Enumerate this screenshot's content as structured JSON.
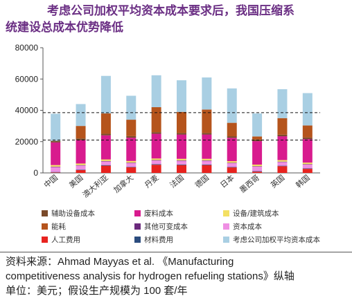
{
  "title_line1": "考虑公司加权平均资本成本要求后，我国压缩系",
  "title_line2": "统建设总成本优势降低",
  "source_line1": "资料来源：Ahmad Mayyas et al. 《Manufacturing",
  "source_line2": "competitiveness analysis for hydrogen refueling stations》纵轴",
  "source_line3": "单位：美元；假设生产规模为 100 套/年",
  "chart_data": {
    "type": "bar",
    "stacked": true,
    "categories": [
      "中国",
      "美国",
      "澳大利亚",
      "加拿大",
      "丹麦",
      "法国",
      "德国",
      "日本",
      "墨西哥",
      "英国",
      "韩国"
    ],
    "ylim": [
      0,
      80000
    ],
    "yticks": [
      0,
      20000,
      40000,
      60000,
      80000
    ],
    "ytick_labels": [
      "0",
      "20000",
      "40000",
      "60000",
      "80000"
    ],
    "reference_lines": [
      38500,
      21000
    ],
    "series": [
      {
        "name": "人工费用",
        "color": "#e8231f",
        "values": [
          300,
          1800,
          4600,
          3600,
          5200,
          5000,
          5000,
          3500,
          800,
          4300,
          2600
        ]
      },
      {
        "name": "材料费用",
        "color": "#2b4c7e",
        "values": [
          300,
          300,
          400,
          300,
          400,
          400,
          400,
          300,
          300,
          300,
          300
        ]
      },
      {
        "name": "资本成本",
        "color": "#ef8fe3",
        "values": [
          3100,
          2600,
          2300,
          2400,
          2300,
          2300,
          2300,
          2400,
          2900,
          2300,
          2400
        ]
      },
      {
        "name": "其他可变成本",
        "color": "#6b2a7d",
        "values": [
          300,
          300,
          300,
          300,
          300,
          300,
          300,
          300,
          300,
          300,
          300
        ]
      },
      {
        "name": "设备/建筑成本",
        "color": "#f3e063",
        "values": [
          1000,
          1000,
          1000,
          1000,
          1000,
          1000,
          1000,
          1000,
          1000,
          1000,
          1000
        ]
      },
      {
        "name": "废料成本",
        "color": "#d81b8e",
        "values": [
          14500,
          15000,
          15400,
          14900,
          15800,
          15500,
          15500,
          14900,
          15000,
          15200,
          15000
        ]
      },
      {
        "name": "辅助设备成本",
        "color": "#7a4a2a",
        "values": [
          1000,
          1000,
          1000,
          1000,
          1000,
          1000,
          1000,
          1000,
          1000,
          1000,
          1000
        ]
      },
      {
        "name": "能耗",
        "color": "#b5541c",
        "values": [
          0,
          8000,
          13000,
          10500,
          16000,
          13500,
          15000,
          8600,
          2000,
          10600,
          7700
        ]
      },
      {
        "name": "考虑公司加权平均资本成本",
        "color": "#a9cfe3",
        "values": [
          17300,
          14000,
          24000,
          15300,
          20400,
          20200,
          20500,
          22000,
          14700,
          18500,
          20700
        ]
      }
    ]
  },
  "legend_order": [
    6,
    5,
    4,
    7,
    3,
    2,
    0,
    1,
    8
  ]
}
